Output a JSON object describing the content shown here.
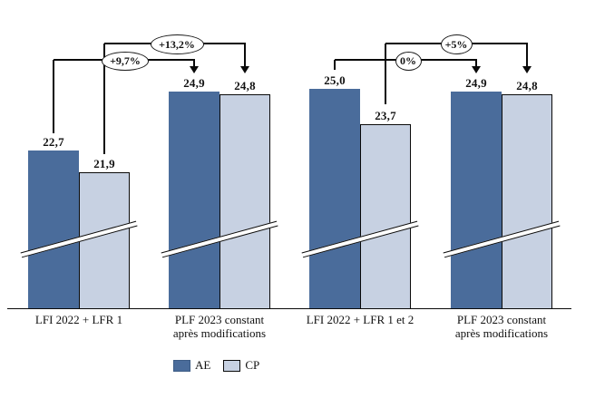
{
  "chart_data": {
    "type": "bar",
    "title": "",
    "categories": [
      {
        "label_lines": [
          "LFI 2022 + LFR 1"
        ]
      },
      {
        "label_lines": [
          "PLF 2023 constant",
          "après modifications"
        ]
      },
      {
        "label_lines": [
          "LFI 2022 + LFR 1 et 2"
        ]
      },
      {
        "label_lines": [
          "PLF 2023 constant",
          "après modifications"
        ]
      }
    ],
    "series": [
      {
        "name": "AE",
        "color": "#4a6c9b",
        "values": [
          22.7,
          24.9,
          25.0,
          24.9
        ],
        "value_labels": [
          "22,7",
          "24,9",
          "25,0",
          "24,9"
        ]
      },
      {
        "name": "CP",
        "color": "#c7d1e2",
        "values": [
          21.9,
          24.8,
          23.7,
          24.8
        ],
        "value_labels": [
          "21,9",
          "24,8",
          "23,7",
          "24,8"
        ]
      }
    ],
    "annotations": [
      {
        "label": "+9,7%",
        "series": "AE",
        "from": 0,
        "to": 1
      },
      {
        "label": "+13,2%",
        "series": "CP",
        "from": 0,
        "to": 1
      },
      {
        "label": "0%",
        "series": "AE",
        "from": 2,
        "to": 3
      },
      {
        "label": "+5%",
        "series": "CP",
        "from": 2,
        "to": 3
      }
    ],
    "axis_break": true,
    "grid": false,
    "legend": {
      "position": "bottom",
      "entries": [
        "AE",
        "CP"
      ]
    },
    "colors": {
      "ae": "#4a6c9b",
      "cp": "#c7d1e2",
      "line": "#0a0a0a",
      "background": "#ffffff"
    }
  }
}
